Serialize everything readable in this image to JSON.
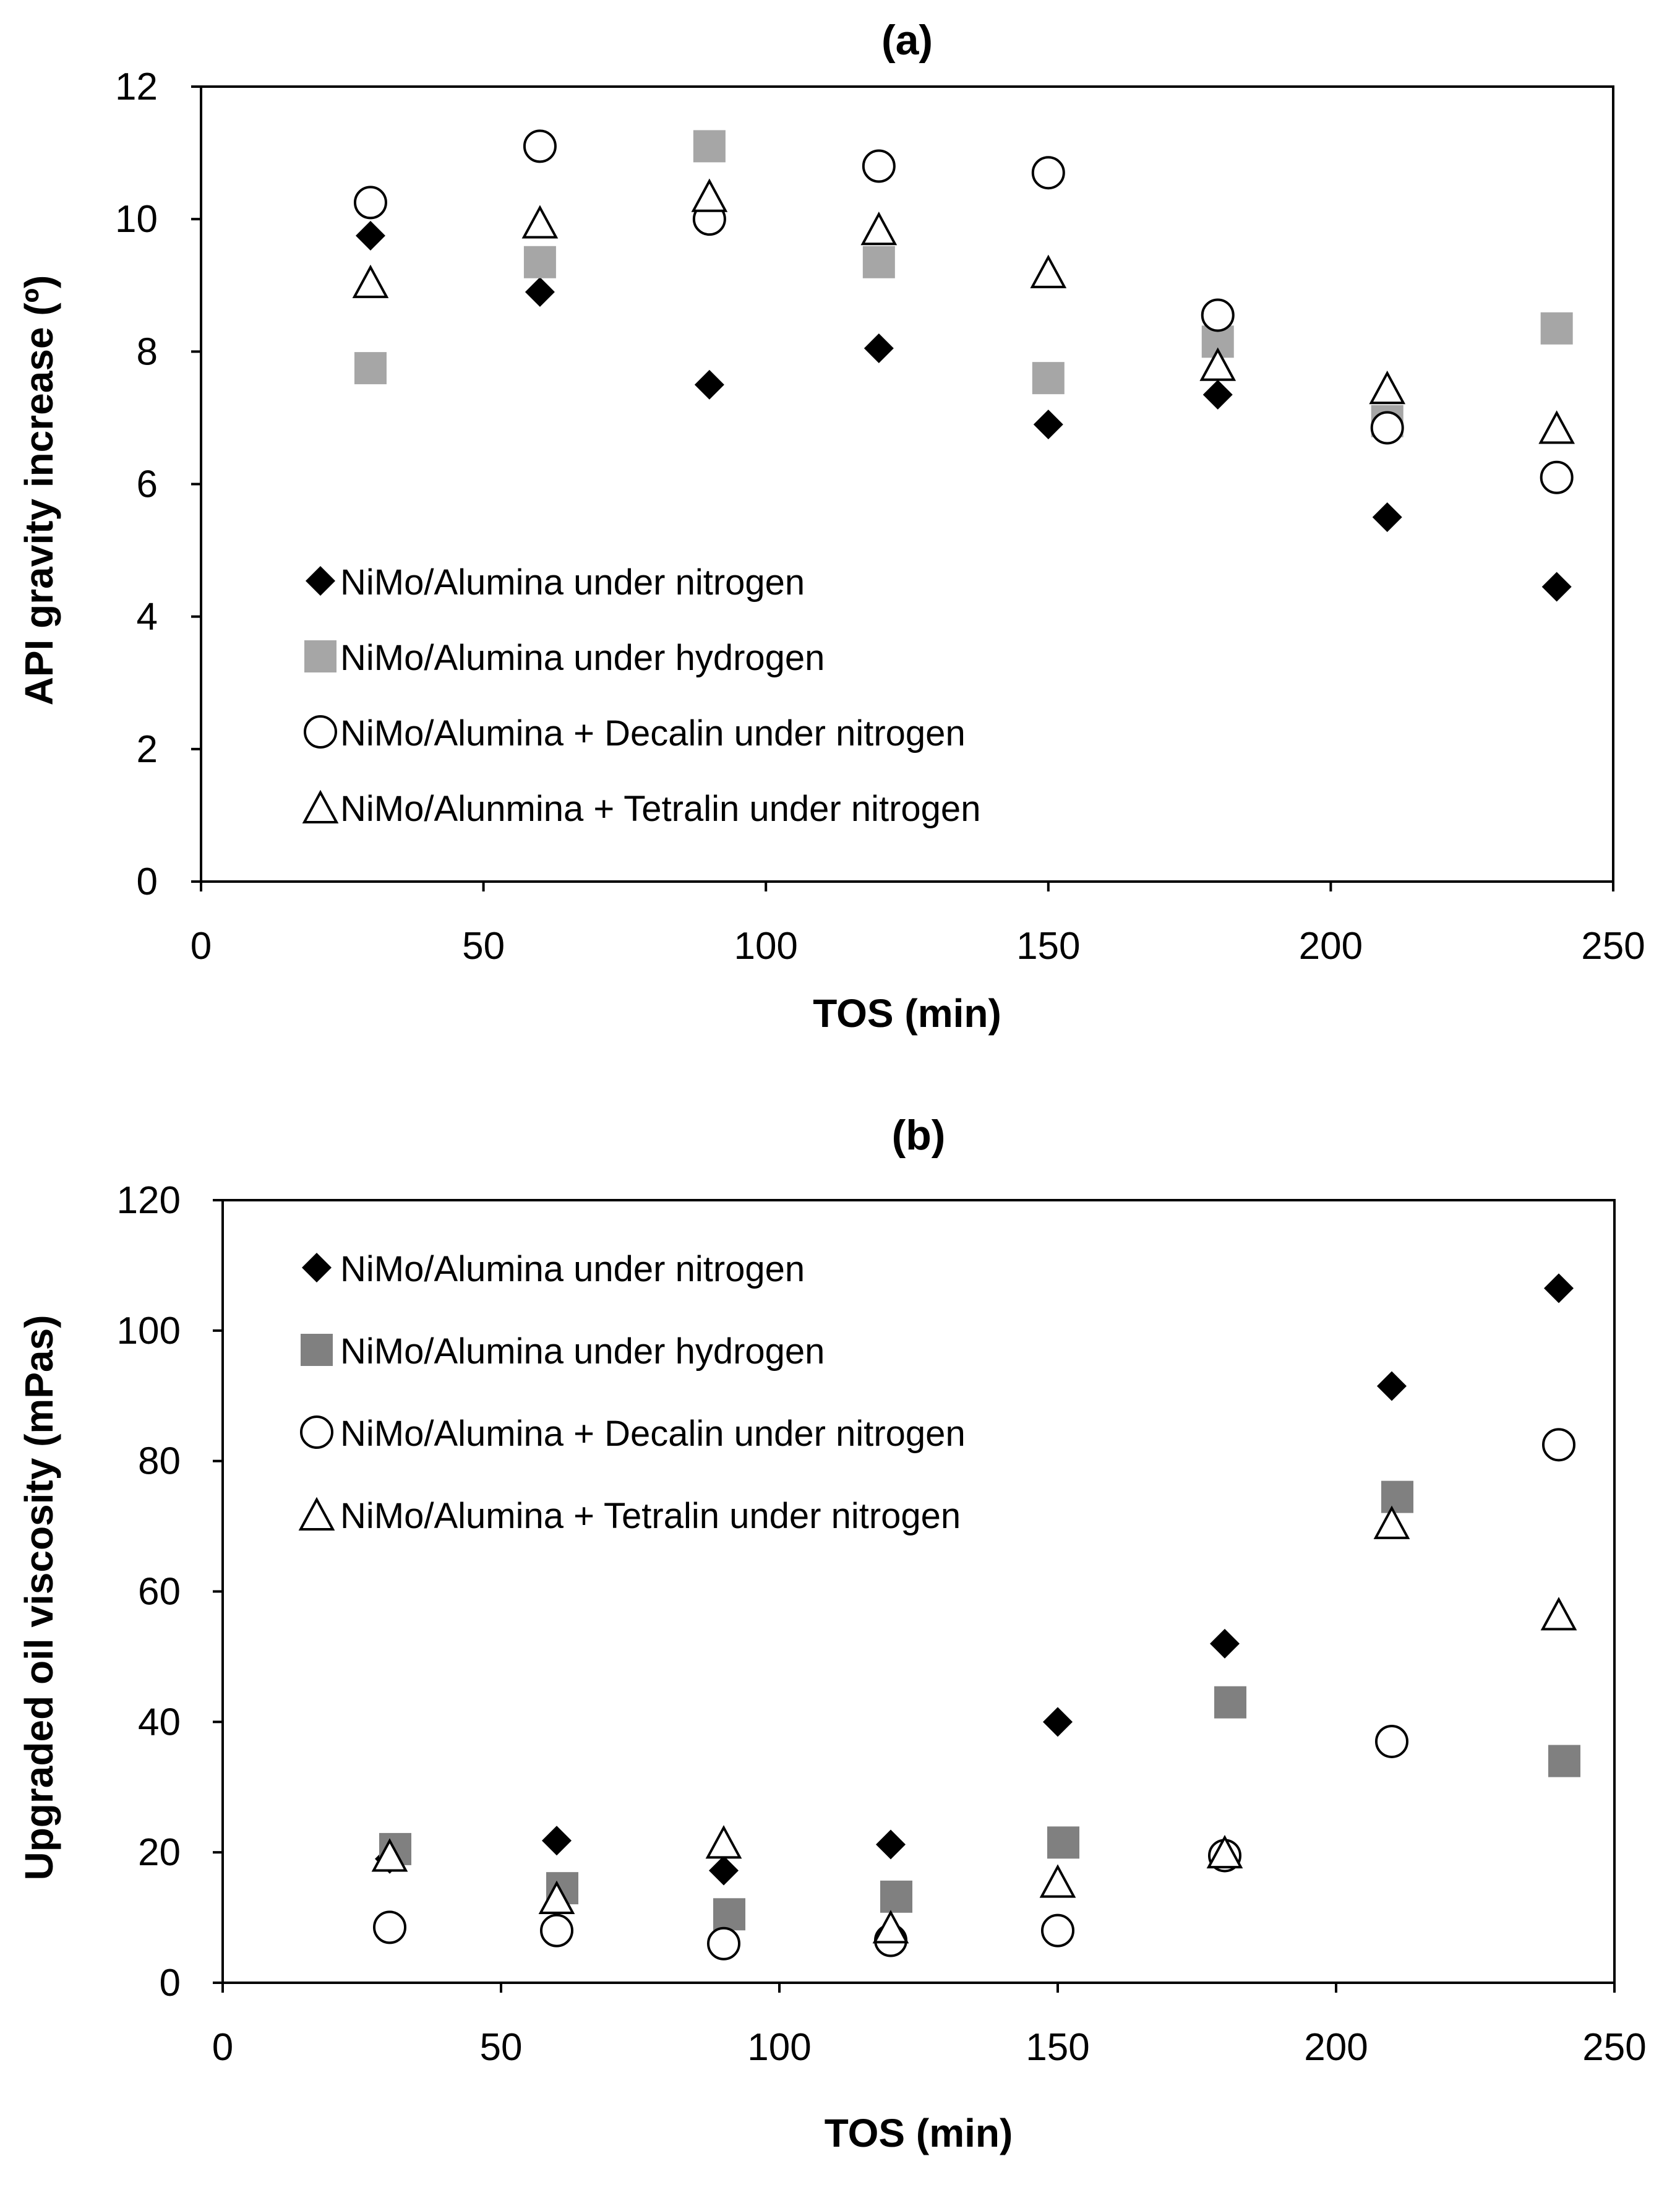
{
  "chart_data": [
    {
      "panel": "a",
      "type": "scatter",
      "title": "(a)",
      "xlabel": "TOS (min)",
      "ylabel": "API gravity increase (º)",
      "xlim": [
        0,
        250
      ],
      "ylim": [
        0,
        12
      ],
      "xticks": [
        "0",
        "50",
        "100",
        "150",
        "200",
        "250"
      ],
      "yticks": [
        "0",
        "2",
        "4",
        "6",
        "8",
        "10",
        "12"
      ],
      "grid": false,
      "legend_position": "bottom-left",
      "series": [
        {
          "name": "NiMo/Alumina under nitrogen",
          "marker": "diamond",
          "color": "#000000",
          "x": [
            30,
            60,
            90,
            120,
            150,
            180,
            210,
            240
          ],
          "values": [
            9.75,
            8.9,
            7.5,
            8.05,
            6.9,
            7.35,
            5.5,
            4.45
          ]
        },
        {
          "name": "NiMo/Alumina under hydrogen",
          "marker": "square",
          "color": "#a6a6a6",
          "x": [
            30,
            60,
            90,
            120,
            150,
            180,
            210,
            240
          ],
          "values": [
            7.75,
            9.35,
            11.1,
            9.35,
            7.6,
            8.15,
            6.95,
            8.35
          ]
        },
        {
          "name": "NiMo/Alumina + Decalin under nitrogen",
          "marker": "circle",
          "color": "#000000",
          "x": [
            30,
            60,
            90,
            120,
            150,
            180,
            210,
            240
          ],
          "values": [
            10.25,
            11.1,
            10.0,
            10.8,
            10.7,
            8.55,
            6.85,
            6.1
          ]
        },
        {
          "name": "NiMo/Alunmina + Tetralin under nitrogen",
          "marker": "triangle",
          "color": "#000000",
          "x": [
            30,
            60,
            90,
            120,
            150,
            180,
            210,
            240
          ],
          "values": [
            9.05,
            9.95,
            10.35,
            9.85,
            9.2,
            7.8,
            7.45,
            6.85
          ]
        }
      ]
    },
    {
      "panel": "b",
      "type": "scatter",
      "title": "(b)",
      "xlabel": "TOS (min)",
      "ylabel": "Upgraded oil viscosity (mPas)",
      "xlim": [
        0,
        250
      ],
      "ylim": [
        0,
        120
      ],
      "xticks": [
        "0",
        "50",
        "100",
        "150",
        "200",
        "250"
      ],
      "yticks": [
        "0",
        "20",
        "40",
        "60",
        "80",
        "100",
        "120"
      ],
      "grid": false,
      "legend_position": "top-left",
      "series": [
        {
          "name": "NiMo/Alumina under nitrogen",
          "marker": "diamond",
          "color": "#000000",
          "x": [
            30,
            60,
            90,
            120,
            150,
            180,
            210,
            240
          ],
          "values": [
            19,
            21.8,
            17.2,
            21.2,
            40,
            52,
            91.5,
            106.5
          ]
        },
        {
          "name": "NiMo/Alumina under hydrogen",
          "marker": "square",
          "color": "#808080",
          "x": [
            31,
            61,
            91,
            121,
            151,
            181,
            211,
            241
          ],
          "values": [
            20.5,
            14.5,
            10.5,
            13.2,
            21.5,
            43,
            74.5,
            34
          ]
        },
        {
          "name": "NiMo/Alumina + Decalin under nitrogen",
          "marker": "circle",
          "color": "#000000",
          "x": [
            30,
            60,
            90,
            120,
            150,
            180,
            210,
            240
          ],
          "values": [
            8.5,
            8,
            6,
            6.5,
            8,
            19.5,
            37,
            82.5
          ]
        },
        {
          "name": "NiMo/Alumina + Tetralin under nitrogen",
          "marker": "triangle",
          "color": "#000000",
          "x": [
            30,
            60,
            90,
            120,
            150,
            180,
            210,
            240
          ],
          "values": [
            19.5,
            13,
            21.5,
            8.5,
            15.5,
            20,
            70.5,
            56.5
          ]
        }
      ]
    }
  ]
}
